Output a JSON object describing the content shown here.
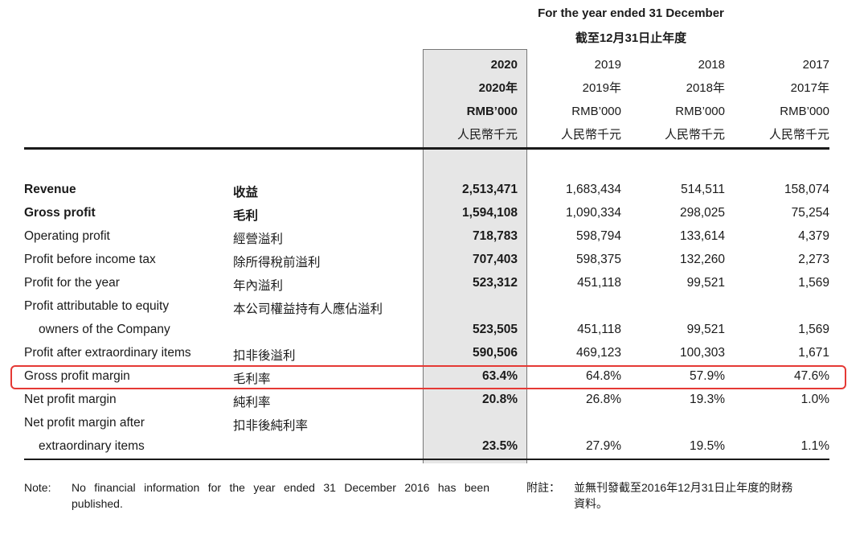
{
  "header": {
    "title_en": "For the year ended 31 December",
    "title_zh": "截至12月31日止年度"
  },
  "columns": [
    {
      "year": "2020",
      "year_zh": "2020年",
      "unit": "RMB’000",
      "unit_zh": "人民幣千元"
    },
    {
      "year": "2019",
      "year_zh": "2019年",
      "unit": "RMB’000",
      "unit_zh": "人民幣千元"
    },
    {
      "year": "2018",
      "year_zh": "2018年",
      "unit": "RMB’000",
      "unit_zh": "人民幣千元"
    },
    {
      "year": "2017",
      "year_zh": "2017年",
      "unit": "RMB’000",
      "unit_zh": "人民幣千元"
    }
  ],
  "rows": [
    {
      "en": "Revenue",
      "zh": "收益",
      "values": [
        "2,513,471",
        "1,683,434",
        "514,511",
        "158,074"
      ]
    },
    {
      "en": "Gross profit",
      "zh": "毛利",
      "values": [
        "1,594,108",
        "1,090,334",
        "298,025",
        "75,254"
      ]
    },
    {
      "en": "Operating profit",
      "zh": "經營溢利",
      "values": [
        "718,783",
        "598,794",
        "133,614",
        "4,379"
      ]
    },
    {
      "en": "Profit before income tax",
      "zh": "除所得稅前溢利",
      "values": [
        "707,403",
        "598,375",
        "132,260",
        "2,273"
      ]
    },
    {
      "en": "Profit for the year",
      "zh": "年內溢利",
      "values": [
        "523,312",
        "451,118",
        "99,521",
        "1,569"
      ]
    },
    {
      "en": "Profit attributable to equity",
      "zh": "本公司權益持有人應佔溢利",
      "values": [
        "",
        "",
        "",
        ""
      ]
    },
    {
      "en": "owners of the Company",
      "zh": "",
      "values": [
        "523,505",
        "451,118",
        "99,521",
        "1,569"
      ]
    },
    {
      "en": "Profit after extraordinary items",
      "zh": "扣非後溢利",
      "values": [
        "590,506",
        "469,123",
        "100,303",
        "1,671"
      ]
    },
    {
      "en": "Gross profit margin",
      "zh": "毛利率",
      "values": [
        "63.4%",
        "64.8%",
        "57.9%",
        "47.6%"
      ]
    },
    {
      "en": "Net profit margin",
      "zh": "純利率",
      "values": [
        "20.8%",
        "26.8%",
        "19.3%",
        "1.0%"
      ]
    },
    {
      "en": "Net profit margin after",
      "zh": "扣非後純利率",
      "values": [
        "",
        "",
        "",
        ""
      ]
    },
    {
      "en": "extraordinary items",
      "zh": "",
      "values": [
        "23.5%",
        "27.9%",
        "19.5%",
        "1.1%"
      ]
    }
  ],
  "note": {
    "label_en": "Note:",
    "text_en_line1": "No financial information for the year ended 31 December 2016 has been",
    "text_en_line2": "published.",
    "label_zh": "附註：",
    "text_zh_line1": "並無刊發截至2016年12月31日止年度的財務",
    "text_zh_line2": "資料。"
  },
  "colors": {
    "highlight": "#e53935",
    "shade": "#e6e6e6"
  }
}
